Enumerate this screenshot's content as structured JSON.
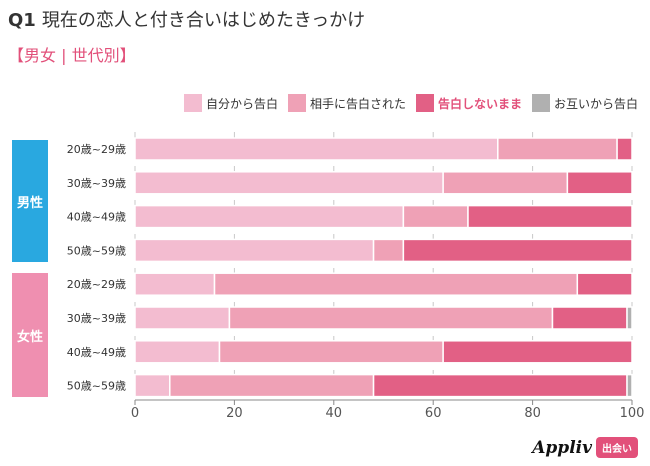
{
  "chart_data": {
    "type": "bar",
    "orientation": "horizontal",
    "stacked": true,
    "title_prefix": "Q1",
    "title": "現在の恋人と付き合いはじめたきっかけ",
    "subtitle": "【男女 | 世代別】",
    "groups": [
      {
        "label": "男性",
        "color": "#29a8e0",
        "categories": [
          "20歳~29歳",
          "30歳~39歳",
          "40歳~49歳",
          "50歳~59歳"
        ]
      },
      {
        "label": "女性",
        "color": "#ef8fb0",
        "categories": [
          "20歳~29歳",
          "30歳~39歳",
          "40歳~49歳",
          "50歳~59歳"
        ]
      }
    ],
    "categories": [
      "20歳~29歳",
      "30歳~39歳",
      "40歳~49歳",
      "50歳~59歳",
      "20歳~29歳",
      "30歳~39歳",
      "40歳~49歳",
      "50歳~59歳"
    ],
    "series": [
      {
        "name": "自分から告白",
        "color": "#f3bcd0",
        "values": [
          73,
          62,
          54,
          48,
          16,
          19,
          17,
          7
        ]
      },
      {
        "name": "相手に告白された",
        "color": "#efa1b6",
        "values": [
          24,
          25,
          13,
          6,
          73,
          65,
          45,
          41
        ]
      },
      {
        "name": "告白しないまま",
        "color": "#e26085",
        "values": [
          3,
          13,
          33,
          46,
          11,
          15,
          38,
          51
        ]
      },
      {
        "name": "お互いから告白",
        "color": "#b0b0b0",
        "values": [
          0,
          0,
          0,
          0,
          0,
          1,
          0,
          1
        ]
      }
    ],
    "highlight_legend": "告白しないまま",
    "xlim": [
      0,
      100
    ],
    "xticks": [
      "0",
      "20",
      "40",
      "60",
      "80",
      "100"
    ],
    "grid": true,
    "legend": "top-right"
  },
  "branding": {
    "logo": "Appliv",
    "badge": "出会い"
  }
}
